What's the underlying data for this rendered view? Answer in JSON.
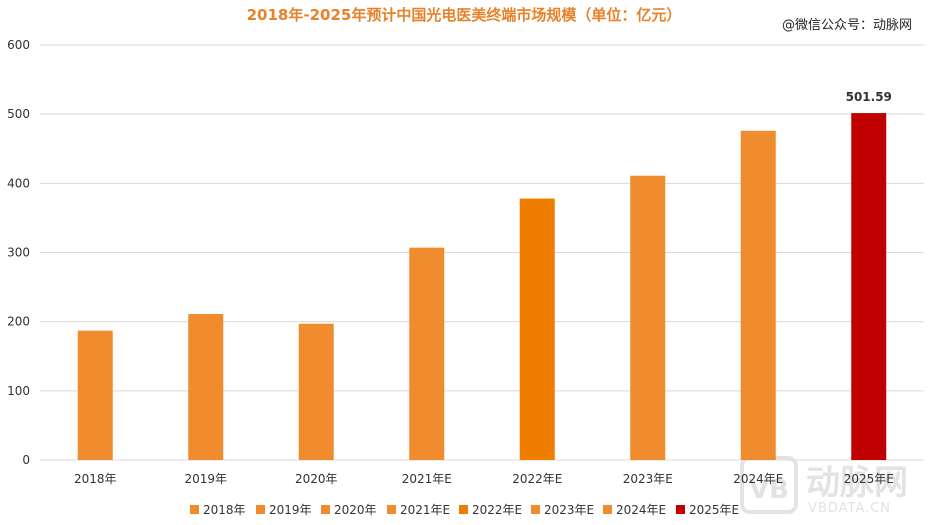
{
  "watermark": {
    "account": "@微信公众号：动脉网",
    "logo_text": "动脉网",
    "logo_url": "VBDATA.CN",
    "logo_mark": "VB"
  },
  "colors": {
    "normal": "#F08C2E",
    "highlight_2022": "#EF7D00",
    "highlight_2025": "#C00000",
    "title": "#E8822A",
    "grid": "#D9D9D9"
  },
  "chart_data": {
    "type": "bar",
    "title": "2018年-2025年预计中国光电医美终端市场规模（单位：亿元）",
    "categories": [
      "2018年",
      "2019年",
      "2020年",
      "2021年E",
      "2022年E",
      "2023年E",
      "2024年E",
      "2025年E"
    ],
    "values": [
      187,
      211,
      197,
      307,
      378,
      411,
      476,
      501.59
    ],
    "bar_colors": [
      "#F08C2E",
      "#F08C2E",
      "#F08C2E",
      "#F08C2E",
      "#EF7D00",
      "#F08C2E",
      "#F08C2E",
      "#C00000"
    ],
    "data_labels": [
      "",
      "",
      "",
      "",
      "",
      "",
      "",
      "501.59"
    ],
    "yticks": [
      "0",
      "100",
      "200",
      "300",
      "400",
      "500",
      "600"
    ],
    "ylim": [
      0,
      600
    ],
    "xlabel": "",
    "ylabel": "",
    "grid": true,
    "legend_position": "bottom",
    "legend": [
      "2018年",
      "2019年",
      "2020年",
      "2021年E",
      "2022年E",
      "2023年E",
      "2024年E",
      "2025年E"
    ]
  }
}
